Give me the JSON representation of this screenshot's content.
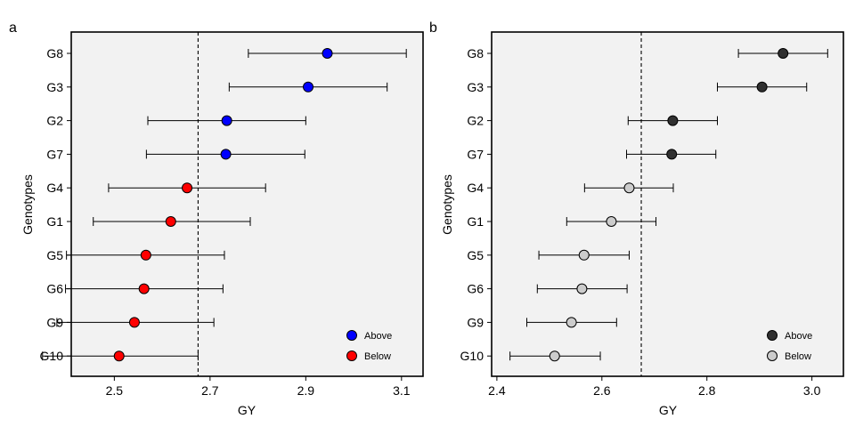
{
  "chart_data": [
    {
      "panel_label": "a",
      "type": "scatter",
      "orientation": "horizontal",
      "xlabel": "GY",
      "ylabel": "Genotypes",
      "xlim": [
        2.41,
        3.145
      ],
      "xticks": [
        2.5,
        2.7,
        2.9,
        3.1
      ],
      "xtick_labels": [
        "2.5",
        "2.7",
        "2.9",
        "3.1"
      ],
      "reference_line": 2.675,
      "categories": [
        "G8",
        "G3",
        "G2",
        "G7",
        "G4",
        "G1",
        "G5",
        "G6",
        "G9",
        "G10"
      ],
      "values": [
        2.945,
        2.905,
        2.735,
        2.733,
        2.652,
        2.618,
        2.566,
        2.562,
        2.542,
        2.51
      ],
      "ci_low": [
        2.78,
        2.74,
        2.57,
        2.567,
        2.488,
        2.456,
        2.4,
        2.398,
        2.38,
        2.35
      ],
      "ci_high": [
        3.11,
        3.07,
        2.9,
        2.898,
        2.816,
        2.784,
        2.73,
        2.727,
        2.708,
        2.675
      ],
      "groups": [
        "Above",
        "Above",
        "Above",
        "Above",
        "Below",
        "Below",
        "Below",
        "Below",
        "Below",
        "Below"
      ],
      "legend": [
        {
          "label": "Above",
          "color": "#0000FF"
        },
        {
          "label": "Below",
          "color": "#FF0000"
        }
      ],
      "legend_position": "bottom-right"
    },
    {
      "panel_label": "b",
      "type": "scatter",
      "orientation": "horizontal",
      "xlabel": "GY",
      "ylabel": "Genotypes",
      "xlim": [
        2.39,
        3.06
      ],
      "xticks": [
        2.4,
        2.6,
        2.8,
        3.0
      ],
      "xtick_labels": [
        "2.4",
        "2.6",
        "2.8",
        "3.0"
      ],
      "reference_line": 2.675,
      "categories": [
        "G8",
        "G3",
        "G2",
        "G7",
        "G4",
        "G1",
        "G5",
        "G6",
        "G9",
        "G10"
      ],
      "values": [
        2.945,
        2.905,
        2.735,
        2.733,
        2.652,
        2.618,
        2.566,
        2.562,
        2.542,
        2.51
      ],
      "ci_low": [
        2.86,
        2.82,
        2.65,
        2.647,
        2.567,
        2.533,
        2.48,
        2.477,
        2.457,
        2.425
      ],
      "ci_high": [
        3.03,
        2.99,
        2.82,
        2.817,
        2.736,
        2.703,
        2.652,
        2.648,
        2.628,
        2.597
      ],
      "groups": [
        "Above",
        "Above",
        "Above",
        "Above",
        "Below",
        "Below",
        "Below",
        "Below",
        "Below",
        "Below"
      ],
      "legend": [
        {
          "label": "Above",
          "color": "#303030"
        },
        {
          "label": "Below",
          "color": "#CCCCCC"
        }
      ],
      "legend_position": "bottom-right"
    }
  ]
}
